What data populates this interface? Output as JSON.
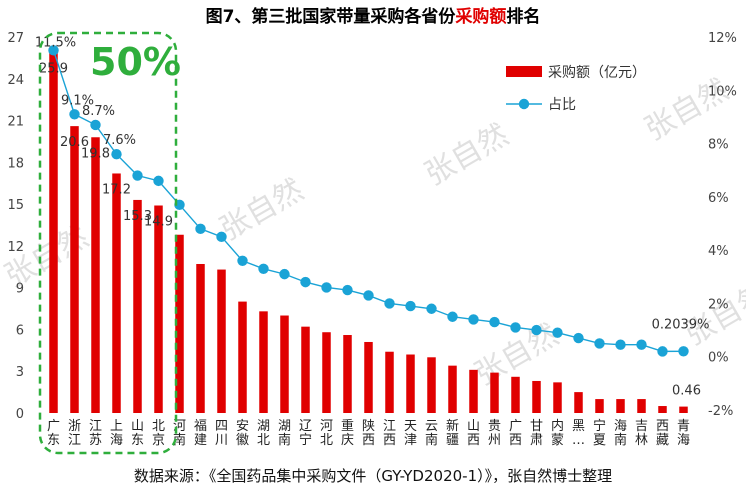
{
  "title": {
    "main": "图7、第三批国家带量采购各省份",
    "highlight": "采购额",
    "suffix": "排名"
  },
  "highlight_text": "50%",
  "watermark": "张自然",
  "source_note": "数据来源：《全国药品集中采购文件（GY-YD2020-1）》，张自然博士整理",
  "colors": {
    "bar": "#e00000",
    "line": "#1aa3d6",
    "highlight_box": "#2fae3c",
    "title_highlight": "#e00000"
  },
  "chart_data": {
    "type": "bar",
    "categories": [
      "广东",
      "浙江",
      "江苏",
      "上海",
      "山东",
      "北京",
      "河南",
      "福建",
      "四川",
      "安徽",
      "湖北",
      "湖南",
      "辽宁",
      "河北",
      "重庆",
      "陕西",
      "江西",
      "天津",
      "云南",
      "新疆",
      "山西",
      "贵州",
      "广西",
      "甘肃",
      "内蒙古",
      "黑",
      "宁夏",
      "海南",
      "吉林",
      "西藏",
      "青海"
    ],
    "category_labels": [
      "广东",
      "浙江",
      "江苏",
      "上海",
      "山东",
      "北京",
      "河南",
      "福建",
      "四川",
      "安徽",
      "湖北",
      "湖南",
      "辽宁",
      "河北",
      "重庆",
      "陕西",
      "江西",
      "天津",
      "云南",
      "新疆",
      "山西",
      "贵州",
      "广西",
      "甘肃",
      "内蒙",
      "黑…",
      "宁夏",
      "海南",
      "吉林",
      "西藏",
      "青海"
    ],
    "series": [
      {
        "name": "采购额（亿元）",
        "type": "bar",
        "axis": "left",
        "values": [
          25.9,
          20.6,
          19.8,
          17.2,
          15.3,
          14.9,
          12.8,
          10.7,
          10.3,
          8.0,
          7.3,
          7.0,
          6.2,
          5.8,
          5.6,
          5.1,
          4.4,
          4.2,
          4.0,
          3.4,
          3.1,
          2.9,
          2.6,
          2.3,
          2.2,
          1.5,
          1.0,
          1.0,
          1.0,
          0.5,
          0.46
        ]
      },
      {
        "name": "占比",
        "type": "line",
        "axis": "right",
        "values": [
          11.5,
          9.1,
          8.7,
          7.6,
          6.8,
          6.6,
          5.7,
          4.8,
          4.5,
          3.6,
          3.3,
          3.1,
          2.8,
          2.6,
          2.5,
          2.3,
          2.0,
          1.9,
          1.8,
          1.5,
          1.4,
          1.3,
          1.1,
          1.0,
          0.9,
          0.7,
          0.5,
          0.45,
          0.45,
          0.2,
          0.2039
        ]
      }
    ],
    "bar_data_labels": [
      {
        "index": 0,
        "text": "25.9"
      },
      {
        "index": 1,
        "text": "20.6"
      },
      {
        "index": 2,
        "text": "19.8"
      },
      {
        "index": 3,
        "text": "17.2"
      },
      {
        "index": 4,
        "text": "15.3"
      },
      {
        "index": 5,
        "text": "14.9"
      },
      {
        "index": 30,
        "text": "0.46"
      }
    ],
    "line_data_labels": [
      {
        "index": 0,
        "text": "11.5%"
      },
      {
        "index": 1,
        "text": "9.1%"
      },
      {
        "index": 2,
        "text": "8.7%"
      },
      {
        "index": 3,
        "text": "7.6%"
      },
      {
        "index": 30,
        "text": "0.2039%"
      }
    ],
    "y_left": {
      "min": 0,
      "max": 27,
      "ticks": [
        "0",
        "3",
        "6",
        "9",
        "12",
        "15",
        "18",
        "21",
        "24",
        "27"
      ]
    },
    "y_right": {
      "min": -2,
      "max": 12,
      "ticks": [
        "-2%",
        "0%",
        "2%",
        "4%",
        "6%",
        "8%",
        "10%",
        "12%"
      ]
    },
    "legend_position": "top-right",
    "grid": false
  }
}
